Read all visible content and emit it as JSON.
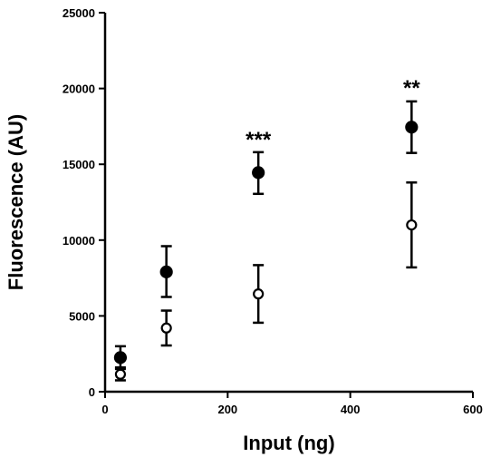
{
  "chart_data": {
    "type": "scatter",
    "title": "",
    "xlabel": "Input (ng)",
    "ylabel": "Fluorescence (AU)",
    "xlim": [
      0,
      600
    ],
    "ylim": [
      0,
      25000
    ],
    "xticks": [
      0,
      200,
      400,
      600
    ],
    "yticks": [
      0,
      5000,
      10000,
      15000,
      20000,
      25000
    ],
    "xtick_labels": [
      "0",
      "200",
      "400",
      "600"
    ],
    "ytick_labels": [
      "0",
      "5000",
      "10000",
      "15000",
      "20000",
      "25000"
    ],
    "grid": false,
    "series": [
      {
        "marker": "filled-circle",
        "color": "#000000",
        "x": [
          25,
          100,
          250,
          500
        ],
        "y": [
          2250,
          7900,
          14450,
          17450
        ],
        "err_low": [
          750,
          1650,
          1400,
          1700
        ],
        "err_high": [
          750,
          1700,
          1350,
          1700
        ]
      },
      {
        "marker": "open-circle",
        "color": "#000000",
        "x": [
          25,
          100,
          250,
          500
        ],
        "y": [
          1150,
          4200,
          6450,
          11000
        ],
        "err_low": [
          400,
          1150,
          1900,
          2800
        ],
        "err_high": [
          450,
          1150,
          1900,
          2800
        ]
      }
    ],
    "annotations": [
      {
        "text": "***",
        "x": 250,
        "y": 15800
      },
      {
        "text": "**",
        "x": 500,
        "y": 19200
      }
    ]
  }
}
